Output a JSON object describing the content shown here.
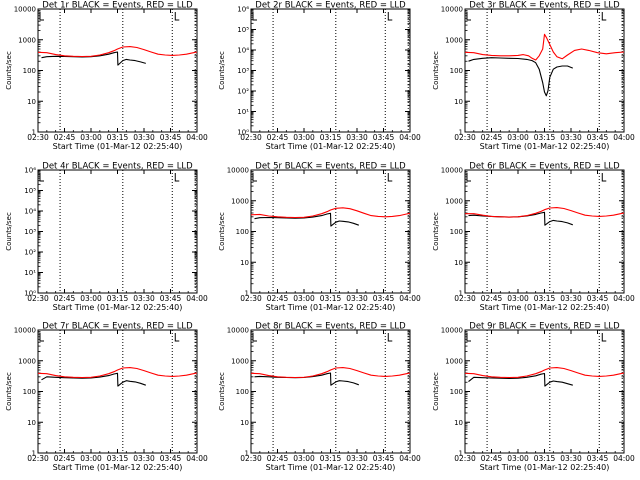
{
  "figure": {
    "time_axis": {
      "xlabel": "Start Time (01-Mar-12 02:25:40)",
      "tick_labels": [
        "02:30",
        "02:45",
        "03:00",
        "03:15",
        "03:30",
        "03:45",
        "04:00"
      ],
      "tick_minutes": [
        0,
        15,
        30,
        45,
        60,
        75,
        90
      ],
      "xlim_minutes": [
        0,
        90
      ],
      "dotted_lines_minutes": [
        12.5,
        48,
        76,
        89
      ]
    },
    "ylabel": "Counts/sec",
    "colors": {
      "events": "#000000",
      "lld": "#ff0000"
    }
  },
  "chart_data": [
    {
      "type": "line",
      "title": "Det 1r BLACK = Events, RED = LLD",
      "yscale": "log",
      "ylim": [
        1,
        10000
      ],
      "y_tick_labels": [
        "1",
        "10",
        "100",
        "1000",
        "10000"
      ],
      "series": [
        {
          "name": "Events",
          "color": "#000000",
          "x": [
            2,
            5,
            10,
            15,
            20,
            25,
            30,
            35,
            40,
            43,
            45,
            45.2,
            48,
            50,
            52,
            55,
            58,
            61
          ],
          "y": [
            260,
            280,
            290,
            285,
            280,
            275,
            280,
            300,
            340,
            380,
            400,
            150,
            210,
            230,
            220,
            210,
            190,
            170
          ]
        },
        {
          "name": "LLD",
          "color": "#ff0000",
          "x": [
            0,
            5,
            10,
            15,
            20,
            25,
            30,
            35,
            40,
            43,
            45,
            48,
            52,
            56,
            60,
            64,
            68,
            72,
            76,
            80,
            84,
            88,
            90
          ],
          "y": [
            390,
            380,
            330,
            300,
            290,
            285,
            290,
            320,
            380,
            440,
            500,
            580,
            600,
            560,
            480,
            400,
            340,
            320,
            310,
            320,
            340,
            380,
            400
          ]
        }
      ]
    },
    {
      "type": "line",
      "title": "Det 2r BLACK = Events, RED = LLD",
      "yscale": "log",
      "ylim": [
        1,
        1000000
      ],
      "y_tick_labels": [
        "10⁰",
        "10¹",
        "10²",
        "10³",
        "10⁴",
        "10⁵",
        "10⁶"
      ],
      "series": []
    },
    {
      "type": "line",
      "title": "Det 3r BLACK = Events, RED = LLD",
      "yscale": "log",
      "ylim": [
        1,
        10000
      ],
      "y_tick_labels": [
        "1",
        "10",
        "100",
        "1000",
        "10000"
      ],
      "series": [
        {
          "name": "Events",
          "color": "#000000",
          "x": [
            2,
            5,
            10,
            15,
            20,
            25,
            30,
            35,
            38,
            40,
            42,
            44,
            45,
            46,
            47,
            48,
            50,
            52,
            55,
            58,
            61
          ],
          "y": [
            200,
            230,
            250,
            260,
            255,
            250,
            245,
            230,
            210,
            180,
            110,
            40,
            20,
            15,
            22,
            60,
            110,
            130,
            140,
            140,
            120
          ]
        },
        {
          "name": "LLD",
          "color": "#ff0000",
          "x": [
            0,
            5,
            10,
            15,
            20,
            25,
            30,
            33,
            36,
            38,
            40,
            42,
            44,
            45,
            46,
            48,
            50,
            52,
            55,
            58,
            62,
            66,
            70,
            75,
            80,
            85,
            90
          ],
          "y": [
            390,
            380,
            330,
            310,
            300,
            300,
            310,
            330,
            300,
            250,
            220,
            300,
            500,
            1500,
            1200,
            700,
            400,
            280,
            240,
            320,
            450,
            500,
            450,
            380,
            350,
            380,
            400
          ]
        }
      ]
    },
    {
      "type": "line",
      "title": "Det 4r BLACK = Events, RED = LLD",
      "yscale": "log",
      "ylim": [
        1,
        1000000
      ],
      "y_tick_labels": [
        "10⁰",
        "10¹",
        "10²",
        "10³",
        "10⁴",
        "10⁵",
        "10⁶"
      ],
      "series": []
    },
    {
      "type": "line",
      "title": "Det 5r BLACK = Events, RED = LLD",
      "yscale": "log",
      "ylim": [
        1,
        10000
      ],
      "y_tick_labels": [
        "1",
        "10",
        "100",
        "1000",
        "10000"
      ],
      "series": [
        {
          "name": "Events",
          "color": "#000000",
          "x": [
            2,
            5,
            10,
            15,
            20,
            25,
            30,
            35,
            40,
            43,
            45,
            45.2,
            48,
            50,
            52,
            55,
            58,
            61
          ],
          "y": [
            260,
            280,
            285,
            280,
            275,
            270,
            275,
            295,
            330,
            370,
            390,
            150,
            200,
            220,
            215,
            205,
            185,
            160
          ]
        },
        {
          "name": "LLD",
          "color": "#ff0000",
          "x": [
            0,
            5,
            10,
            15,
            20,
            25,
            30,
            35,
            40,
            43,
            45,
            48,
            52,
            56,
            60,
            64,
            68,
            72,
            76,
            80,
            84,
            88,
            90
          ],
          "y": [
            350,
            360,
            320,
            300,
            290,
            285,
            290,
            320,
            380,
            440,
            500,
            570,
            590,
            550,
            470,
            390,
            330,
            310,
            300,
            310,
            330,
            370,
            390
          ]
        }
      ]
    },
    {
      "type": "line",
      "title": "Det 6r BLACK = Events, RED = LLD",
      "yscale": "log",
      "ylim": [
        1,
        10000
      ],
      "y_tick_labels": [
        "1",
        "10",
        "100",
        "1000",
        "10000"
      ],
      "series": [
        {
          "name": "Events",
          "color": "#000000",
          "x": [
            2,
            5,
            10,
            15,
            20,
            25,
            30,
            35,
            40,
            43,
            45,
            45.2,
            48,
            50,
            52,
            55,
            58,
            61
          ],
          "y": [
            330,
            340,
            320,
            310,
            300,
            295,
            300,
            320,
            360,
            400,
            420,
            160,
            210,
            230,
            220,
            210,
            190,
            165
          ]
        },
        {
          "name": "LLD",
          "color": "#ff0000",
          "x": [
            0,
            5,
            10,
            15,
            20,
            25,
            30,
            35,
            40,
            43,
            45,
            48,
            52,
            56,
            60,
            64,
            68,
            72,
            76,
            80,
            84,
            88,
            90
          ],
          "y": [
            380,
            380,
            340,
            310,
            300,
            295,
            300,
            330,
            390,
            450,
            510,
            580,
            600,
            560,
            480,
            400,
            340,
            320,
            310,
            320,
            340,
            380,
            400
          ]
        }
      ]
    },
    {
      "type": "line",
      "title": "Det 7r BLACK = Events, RED = LLD",
      "yscale": "log",
      "ylim": [
        1,
        10000
      ],
      "y_tick_labels": [
        "1",
        "10",
        "100",
        "1000",
        "10000"
      ],
      "series": [
        {
          "name": "Events",
          "color": "#000000",
          "x": [
            2,
            5,
            10,
            15,
            20,
            25,
            30,
            35,
            40,
            43,
            45,
            45.2,
            48,
            50,
            52,
            55,
            58,
            61
          ],
          "y": [
            240,
            300,
            290,
            280,
            275,
            270,
            275,
            295,
            330,
            370,
            390,
            150,
            200,
            225,
            215,
            205,
            185,
            160
          ]
        },
        {
          "name": "LLD",
          "color": "#ff0000",
          "x": [
            0,
            5,
            10,
            15,
            20,
            25,
            30,
            35,
            40,
            43,
            45,
            48,
            52,
            56,
            60,
            64,
            68,
            72,
            76,
            80,
            84,
            88,
            90
          ],
          "y": [
            390,
            380,
            330,
            300,
            290,
            285,
            290,
            320,
            380,
            440,
            500,
            580,
            600,
            560,
            480,
            400,
            340,
            320,
            310,
            320,
            340,
            380,
            400
          ]
        }
      ]
    },
    {
      "type": "line",
      "title": "Det 8r BLACK = Events, RED = LLD",
      "yscale": "log",
      "ylim": [
        1,
        10000
      ],
      "y_tick_labels": [
        "1",
        "10",
        "100",
        "1000",
        "10000"
      ],
      "series": [
        {
          "name": "Events",
          "color": "#000000",
          "x": [
            2,
            5,
            10,
            15,
            20,
            25,
            30,
            35,
            40,
            43,
            45,
            45.2,
            48,
            50,
            52,
            55,
            58,
            61
          ],
          "y": [
            300,
            310,
            300,
            290,
            285,
            280,
            285,
            305,
            340,
            380,
            400,
            160,
            205,
            225,
            220,
            210,
            190,
            165
          ]
        },
        {
          "name": "LLD",
          "color": "#ff0000",
          "x": [
            0,
            5,
            10,
            15,
            20,
            25,
            30,
            35,
            40,
            43,
            45,
            48,
            52,
            56,
            60,
            64,
            68,
            72,
            76,
            80,
            84,
            88,
            90
          ],
          "y": [
            390,
            380,
            330,
            300,
            290,
            285,
            290,
            320,
            380,
            440,
            500,
            580,
            600,
            560,
            480,
            400,
            340,
            320,
            310,
            320,
            340,
            380,
            400
          ]
        }
      ]
    },
    {
      "type": "line",
      "title": "Det 9r BLACK = Events, RED = LLD",
      "yscale": "log",
      "ylim": [
        1,
        10000
      ],
      "y_tick_labels": [
        "1",
        "10",
        "100",
        "1000",
        "10000"
      ],
      "series": [
        {
          "name": "Events",
          "color": "#000000",
          "x": [
            2,
            5,
            10,
            15,
            20,
            25,
            30,
            35,
            40,
            43,
            45,
            45.2,
            48,
            50,
            52,
            55,
            58,
            61
          ],
          "y": [
            210,
            290,
            280,
            275,
            270,
            265,
            270,
            290,
            325,
            365,
            385,
            150,
            200,
            220,
            210,
            200,
            180,
            160
          ]
        },
        {
          "name": "LLD",
          "color": "#ff0000",
          "x": [
            0,
            5,
            10,
            15,
            20,
            25,
            30,
            35,
            40,
            43,
            45,
            48,
            52,
            56,
            60,
            64,
            68,
            72,
            76,
            80,
            84,
            88,
            90
          ],
          "y": [
            390,
            380,
            330,
            300,
            290,
            285,
            290,
            320,
            380,
            440,
            500,
            580,
            600,
            560,
            480,
            400,
            340,
            320,
            310,
            320,
            340,
            380,
            400
          ]
        }
      ]
    }
  ]
}
